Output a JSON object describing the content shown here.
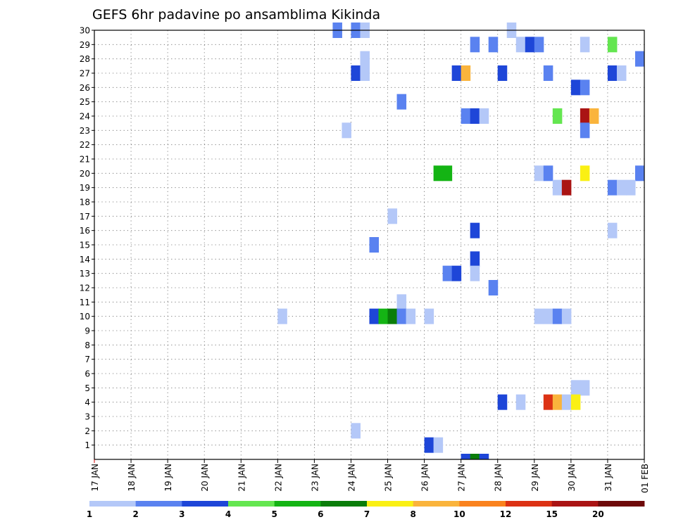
{
  "chart_data": {
    "type": "heatmap",
    "title": "GEFS 6hr padavine po ansamblima Kikinda",
    "x_ticks": [
      "17 JAN",
      "18 JAN",
      "19 JAN",
      "20 JAN",
      "21 JAN",
      "22 JAN",
      "23 JAN",
      "24 JAN",
      "25 JAN",
      "26 JAN",
      "27 JAN",
      "28 JAN",
      "29 JAN",
      "30 JAN",
      "31 JAN",
      "01 FEB"
    ],
    "xlim": [
      "17 JAN",
      "01 FEB"
    ],
    "y_ticks": [
      "1",
      "2",
      "3",
      "4",
      "5",
      "6",
      "7",
      "8",
      "9",
      "10",
      "11",
      "12",
      "13",
      "14",
      "15",
      "16",
      "17",
      "18",
      "19",
      "20",
      "21",
      "22",
      "23",
      "24",
      "25",
      "26",
      "27",
      "28",
      "29",
      "30"
    ],
    "ylim": [
      0,
      30
    ],
    "grid": true,
    "colorbar": {
      "labels": [
        "1",
        "2",
        "3",
        "4",
        "5",
        "6",
        "7",
        "8",
        "10",
        "12",
        "15",
        "20"
      ],
      "colors": [
        "#b4c8f8",
        "#5a82f0",
        "#1e46d8",
        "#64e650",
        "#14b414",
        "#0a7d0a",
        "#faf014",
        "#fab43c",
        "#fa821e",
        "#dc3214",
        "#aa1414",
        "#6e0a0a"
      ]
    },
    "cells_note": "Each cell: member (y), time in days since 17 JAN 00z (x), colorbar class index (c)",
    "cells": [
      {
        "y": 30,
        "x": 6.5,
        "c": 1
      },
      {
        "y": 30,
        "x": 7.0,
        "c": 1
      },
      {
        "y": 30,
        "x": 7.25,
        "c": 0
      },
      {
        "y": 30,
        "x": 11.25,
        "c": 0
      },
      {
        "y": 29,
        "x": 10.25,
        "c": 1
      },
      {
        "y": 29,
        "x": 10.75,
        "c": 1
      },
      {
        "y": 29,
        "x": 11.5,
        "c": 0
      },
      {
        "y": 29,
        "x": 11.75,
        "c": 2
      },
      {
        "y": 29,
        "x": 12.0,
        "c": 1
      },
      {
        "y": 29,
        "x": 13.25,
        "c": 0
      },
      {
        "y": 29,
        "x": 14.0,
        "c": 3
      },
      {
        "y": 28,
        "x": 7.25,
        "c": 0
      },
      {
        "y": 28,
        "x": 14.75,
        "c": 1
      },
      {
        "y": 27,
        "x": 7.0,
        "c": 2
      },
      {
        "y": 27,
        "x": 7.25,
        "c": 0
      },
      {
        "y": 27,
        "x": 9.75,
        "c": 2
      },
      {
        "y": 27,
        "x": 10.0,
        "c": 7
      },
      {
        "y": 27,
        "x": 11.0,
        "c": 2
      },
      {
        "y": 27,
        "x": 12.25,
        "c": 1
      },
      {
        "y": 27,
        "x": 14.0,
        "c": 2
      },
      {
        "y": 27,
        "x": 14.25,
        "c": 0
      },
      {
        "y": 26,
        "x": 13.0,
        "c": 2
      },
      {
        "y": 26,
        "x": 13.25,
        "c": 1
      },
      {
        "y": 25,
        "x": 8.25,
        "c": 1
      },
      {
        "y": 24,
        "x": 10.0,
        "c": 1
      },
      {
        "y": 24,
        "x": 10.25,
        "c": 2
      },
      {
        "y": 24,
        "x": 10.5,
        "c": 0
      },
      {
        "y": 24,
        "x": 12.5,
        "c": 3
      },
      {
        "y": 24,
        "x": 13.25,
        "c": 10
      },
      {
        "y": 24,
        "x": 13.5,
        "c": 7
      },
      {
        "y": 23,
        "x": 6.75,
        "c": 0
      },
      {
        "y": 23,
        "x": 13.25,
        "c": 1
      },
      {
        "y": 20,
        "x": 9.25,
        "c": 4
      },
      {
        "y": 20,
        "x": 9.5,
        "c": 4
      },
      {
        "y": 20,
        "x": 12.0,
        "c": 0
      },
      {
        "y": 20,
        "x": 12.25,
        "c": 1
      },
      {
        "y": 20,
        "x": 13.25,
        "c": 6
      },
      {
        "y": 20,
        "x": 14.75,
        "c": 1
      },
      {
        "y": 19,
        "x": 12.5,
        "c": 0
      },
      {
        "y": 19,
        "x": 12.75,
        "c": 10
      },
      {
        "y": 19,
        "x": 14.0,
        "c": 1
      },
      {
        "y": 19,
        "x": 14.25,
        "c": 0
      },
      {
        "y": 19,
        "x": 14.5,
        "c": 0
      },
      {
        "y": 17,
        "x": 8.0,
        "c": 0
      },
      {
        "y": 16,
        "x": 10.25,
        "c": 2
      },
      {
        "y": 16,
        "x": 14.0,
        "c": 0
      },
      {
        "y": 15,
        "x": 7.5,
        "c": 1
      },
      {
        "y": 14,
        "x": 10.25,
        "c": 2
      },
      {
        "y": 13,
        "x": 9.5,
        "c": 1
      },
      {
        "y": 13,
        "x": 9.75,
        "c": 2
      },
      {
        "y": 13,
        "x": 10.25,
        "c": 0
      },
      {
        "y": 12,
        "x": 10.75,
        "c": 1
      },
      {
        "y": 11,
        "x": 8.25,
        "c": 0
      },
      {
        "y": 10,
        "x": 5.0,
        "c": 0
      },
      {
        "y": 10,
        "x": 7.5,
        "c": 2
      },
      {
        "y": 10,
        "x": 7.75,
        "c": 4
      },
      {
        "y": 10,
        "x": 8.0,
        "c": 5
      },
      {
        "y": 10,
        "x": 8.25,
        "c": 1
      },
      {
        "y": 10,
        "x": 8.5,
        "c": 0
      },
      {
        "y": 10,
        "x": 9.0,
        "c": 0
      },
      {
        "y": 10,
        "x": 12.0,
        "c": 0
      },
      {
        "y": 10,
        "x": 12.25,
        "c": 0
      },
      {
        "y": 10,
        "x": 12.5,
        "c": 1
      },
      {
        "y": 10,
        "x": 12.75,
        "c": 0
      },
      {
        "y": 5,
        "x": 13.0,
        "c": 0
      },
      {
        "y": 5,
        "x": 13.25,
        "c": 0
      },
      {
        "y": 4,
        "x": 11.0,
        "c": 2
      },
      {
        "y": 4,
        "x": 11.5,
        "c": 0
      },
      {
        "y": 4,
        "x": 12.25,
        "c": 9
      },
      {
        "y": 4,
        "x": 12.5,
        "c": 7
      },
      {
        "y": 4,
        "x": 12.75,
        "c": 0
      },
      {
        "y": 4,
        "x": 13.0,
        "c": 6
      },
      {
        "y": 2,
        "x": 7.0,
        "c": 0
      },
      {
        "y": 1,
        "x": 9.0,
        "c": 2
      },
      {
        "y": 1,
        "x": 9.25,
        "c": 0
      },
      {
        "y": 0,
        "x": 10.0,
        "c": 2
      },
      {
        "y": 0,
        "x": 10.25,
        "c": 5
      },
      {
        "y": 0,
        "x": 10.5,
        "c": 2
      }
    ]
  }
}
